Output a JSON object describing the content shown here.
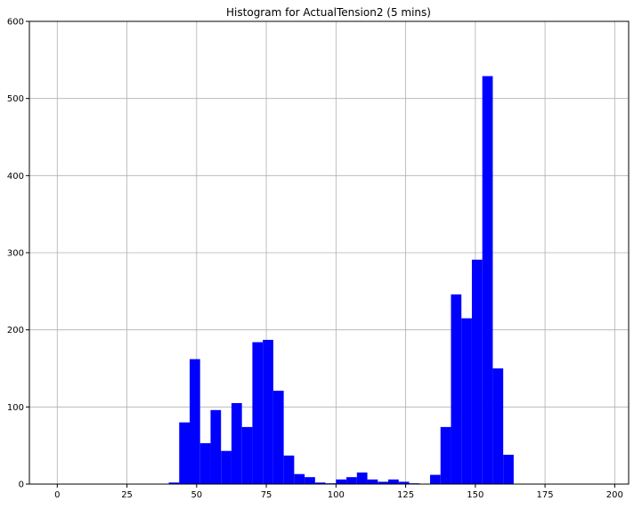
{
  "chart_data": {
    "type": "bar",
    "title": "Histogram for ActualTension2 (5 mins)",
    "xlabel": "",
    "ylabel": "",
    "xlim": [
      -10,
      205
    ],
    "ylim": [
      0,
      600
    ],
    "x_ticks": [
      0,
      25,
      50,
      75,
      100,
      125,
      150,
      175,
      200
    ],
    "y_ticks": [
      0,
      100,
      200,
      300,
      400,
      500,
      600
    ],
    "grid": true,
    "bar_color": "#0000ff",
    "bin_width": 3.75,
    "bins": [
      {
        "x0": 40.0,
        "x1": 43.75,
        "value": 2
      },
      {
        "x0": 43.75,
        "x1": 47.5,
        "value": 80
      },
      {
        "x0": 47.5,
        "x1": 51.25,
        "value": 162
      },
      {
        "x0": 51.25,
        "x1": 55.0,
        "value": 53
      },
      {
        "x0": 55.0,
        "x1": 58.75,
        "value": 96
      },
      {
        "x0": 58.75,
        "x1": 62.5,
        "value": 43
      },
      {
        "x0": 62.5,
        "x1": 66.25,
        "value": 105
      },
      {
        "x0": 66.25,
        "x1": 70.0,
        "value": 74
      },
      {
        "x0": 70.0,
        "x1": 73.75,
        "value": 184
      },
      {
        "x0": 73.75,
        "x1": 77.5,
        "value": 187
      },
      {
        "x0": 77.5,
        "x1": 81.25,
        "value": 121
      },
      {
        "x0": 81.25,
        "x1": 85.0,
        "value": 37
      },
      {
        "x0": 85.0,
        "x1": 88.75,
        "value": 13
      },
      {
        "x0": 88.75,
        "x1": 92.5,
        "value": 9
      },
      {
        "x0": 92.5,
        "x1": 96.25,
        "value": 2
      },
      {
        "x0": 96.25,
        "x1": 100.0,
        "value": 1
      },
      {
        "x0": 100.0,
        "x1": 103.75,
        "value": 6
      },
      {
        "x0": 103.75,
        "x1": 107.5,
        "value": 9
      },
      {
        "x0": 107.5,
        "x1": 111.25,
        "value": 15
      },
      {
        "x0": 111.25,
        "x1": 115.0,
        "value": 6
      },
      {
        "x0": 115.0,
        "x1": 118.75,
        "value": 3
      },
      {
        "x0": 118.75,
        "x1": 122.5,
        "value": 6
      },
      {
        "x0": 122.5,
        "x1": 126.25,
        "value": 3
      },
      {
        "x0": 126.25,
        "x1": 130.0,
        "value": 1
      },
      {
        "x0": 130.0,
        "x1": 133.75,
        "value": 0
      },
      {
        "x0": 133.75,
        "x1": 137.5,
        "value": 12
      },
      {
        "x0": 137.5,
        "x1": 141.25,
        "value": 74
      },
      {
        "x0": 141.25,
        "x1": 145.0,
        "value": 246
      },
      {
        "x0": 145.0,
        "x1": 148.75,
        "value": 215
      },
      {
        "x0": 148.75,
        "x1": 152.5,
        "value": 291
      },
      {
        "x0": 152.5,
        "x1": 156.25,
        "value": 529
      },
      {
        "x0": 156.25,
        "x1": 160.0,
        "value": 150
      },
      {
        "x0": 160.0,
        "x1": 163.75,
        "value": 38
      }
    ]
  }
}
